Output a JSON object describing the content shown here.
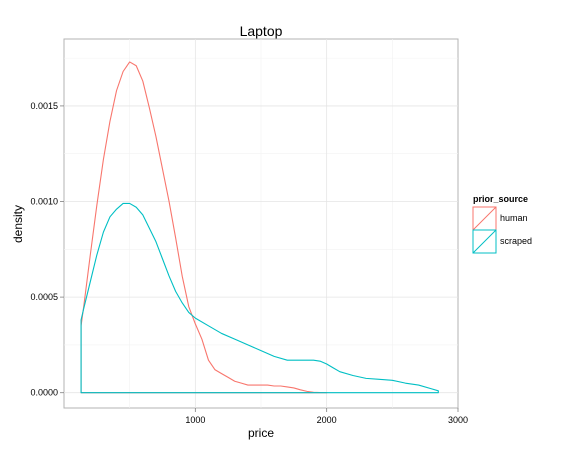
{
  "chart_data": {
    "type": "area",
    "title": "Laptop",
    "xlabel": "price",
    "ylabel": "density",
    "xlim": [
      0,
      3000
    ],
    "ylim": [
      -8e-05,
      0.00185
    ],
    "x_ticks": [
      1000,
      2000,
      3000
    ],
    "x_tick_labels": [
      "1000",
      "2000",
      "3000"
    ],
    "y_ticks": [
      0,
      0.0005,
      0.001,
      0.0015
    ],
    "y_tick_labels": [
      "0.0000",
      "0.0005",
      "0.0010",
      "0.0015"
    ],
    "grid": true,
    "legend": {
      "title": "prior_source",
      "position": "right",
      "entries": [
        {
          "label": "human",
          "color": "#F8766D"
        },
        {
          "label": "scraped",
          "color": "#00BFC4"
        }
      ]
    },
    "series": [
      {
        "name": "human",
        "color": "#F8766D",
        "x": [
          130,
          150,
          200,
          250,
          300,
          350,
          400,
          450,
          500,
          550,
          600,
          650,
          700,
          750,
          800,
          850,
          900,
          950,
          1000,
          1050,
          1100,
          1150,
          1200,
          1250,
          1300,
          1350,
          1400,
          1450,
          1500,
          1550,
          1600,
          1650,
          1700,
          1750,
          1800,
          1850,
          1900,
          1950,
          2000
        ],
        "y": [
          0.00035,
          0.00045,
          0.00072,
          0.00098,
          0.00122,
          0.00142,
          0.00158,
          0.00168,
          0.00173,
          0.00171,
          0.00163,
          0.00149,
          0.00134,
          0.00117,
          0.001,
          0.00081,
          0.00061,
          0.00045,
          0.00036,
          0.00028,
          0.00017,
          0.00012,
          0.0001,
          8e-05,
          6e-05,
          5e-05,
          4e-05,
          4e-05,
          4e-05,
          4e-05,
          3.5e-05,
          3.5e-05,
          3e-05,
          2.5e-05,
          1.5e-05,
          7e-06,
          2e-06,
          1e-06,
          0
        ]
      },
      {
        "name": "scraped",
        "color": "#00BFC4",
        "x": [
          130,
          150,
          200,
          250,
          300,
          350,
          400,
          450,
          500,
          550,
          600,
          650,
          700,
          750,
          800,
          850,
          900,
          950,
          1000,
          1100,
          1200,
          1300,
          1400,
          1500,
          1600,
          1700,
          1800,
          1900,
          1950,
          2000,
          2050,
          2100,
          2200,
          2300,
          2400,
          2500,
          2600,
          2700,
          2800,
          2850
        ],
        "y": [
          0.00038,
          0.00044,
          0.00058,
          0.00072,
          0.00084,
          0.00092,
          0.00096,
          0.00099,
          0.00099,
          0.00097,
          0.00093,
          0.00086,
          0.00079,
          0.0007,
          0.00061,
          0.00053,
          0.00047,
          0.00042,
          0.00039,
          0.00035,
          0.00031,
          0.00028,
          0.00025,
          0.00022,
          0.00019,
          0.00017,
          0.00017,
          0.00017,
          0.000165,
          0.00015,
          0.00013,
          0.00011,
          9e-05,
          7.5e-05,
          7e-05,
          6.5e-05,
          5e-05,
          4e-05,
          2e-05,
          1e-05
        ]
      }
    ]
  }
}
